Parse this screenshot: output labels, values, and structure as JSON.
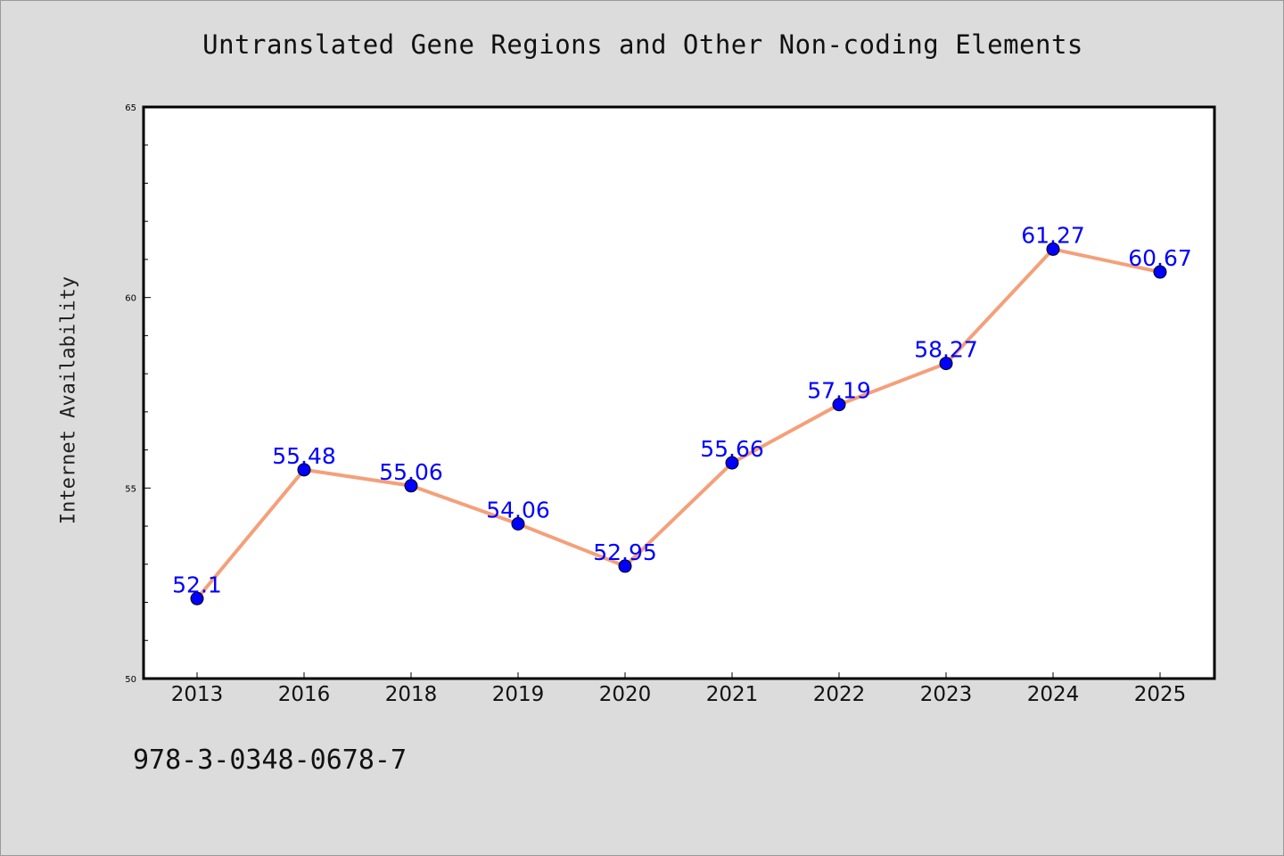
{
  "chart_data": {
    "type": "line",
    "title": "Untranslated Gene Regions and Other Non-coding Elements",
    "xlabel": "",
    "ylabel": "Internet Availability",
    "categories": [
      "2013",
      "2016",
      "2018",
      "2019",
      "2020",
      "2021",
      "2022",
      "2023",
      "2024",
      "2025"
    ],
    "series": [
      {
        "values": [
          52.1,
          55.48,
          55.06,
          54.06,
          52.95,
          55.66,
          57.19,
          58.27,
          61.27,
          60.67
        ],
        "data_labels": [
          "52.1",
          "55.48",
          "55.06",
          "54.06",
          "52.95",
          "55.66",
          "57.19",
          "58.27",
          "61.27",
          "60.67"
        ],
        "line_color": "#f4a07a",
        "marker_color": "#0000ff"
      }
    ],
    "ylim": [
      50,
      65
    ],
    "yticks": [
      "50",
      "55",
      "60",
      "65"
    ],
    "grid": false,
    "legend": "none"
  },
  "footer": {
    "text": "978-3-0348-0678-7"
  },
  "colors": {
    "background": "#dcdcdc",
    "plot_background": "#ffffff",
    "line": "#f4a07a",
    "marker": "#0000ff",
    "data_label": "#0000ff"
  }
}
